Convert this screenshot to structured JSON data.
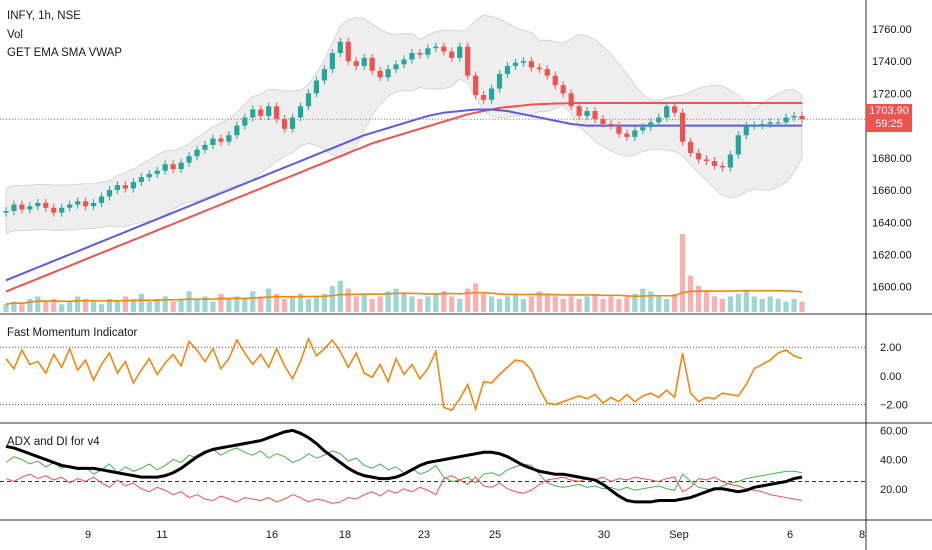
{
  "header": {
    "symbol_line": "INFY, 1h, NSE",
    "vol_label": "Vol",
    "overlay_label": "GET EMA SMA VWAP"
  },
  "panes": {
    "momentum_title": "Fast Momentum Indicator",
    "adx_title": "ADX and DI for v4"
  },
  "last_price": {
    "price": "1703.90",
    "countdown": "59:25"
  },
  "colors": {
    "up": "#26a69a",
    "down": "#ef5350",
    "ema_red": "#ef5350",
    "sma_blue": "#5b5be6",
    "band_fill": "#eeeeee",
    "momentum": "#f0870f",
    "adx": "#000000",
    "di_plus": "#4caf50",
    "di_minus": "#ef5350",
    "volume_ma": "#f0870f"
  },
  "chart_data": [
    {
      "type": "candlestick",
      "title": "INFY, 1h, NSE",
      "y_ticks": [
        "1760.00",
        "1740.00",
        "1720.00",
        "1700.00",
        "1680.00",
        "1660.00",
        "1640.00",
        "1620.00",
        "1600.00"
      ],
      "ylim": [
        1593,
        1768
      ],
      "x_ticks": [
        "9",
        "11",
        "16",
        "18",
        "23",
        "25",
        "30",
        "Sep",
        "6",
        "8"
      ],
      "close": [
        1647,
        1651,
        1648,
        1650,
        1652,
        1649,
        1646,
        1649,
        1651,
        1653,
        1650,
        1652,
        1656,
        1660,
        1663,
        1661,
        1665,
        1668,
        1670,
        1672,
        1676,
        1673,
        1677,
        1681,
        1685,
        1688,
        1692,
        1690,
        1694,
        1700,
        1705,
        1710,
        1706,
        1712,
        1704,
        1698,
        1705,
        1712,
        1720,
        1728,
        1735,
        1745,
        1752,
        1740,
        1737,
        1742,
        1734,
        1730,
        1735,
        1738,
        1741,
        1745,
        1744,
        1748,
        1749,
        1746,
        1742,
        1749,
        1731,
        1719,
        1716,
        1723,
        1732,
        1737,
        1739,
        1740,
        1736,
        1735,
        1731,
        1725,
        1720,
        1712,
        1706,
        1709,
        1704,
        1701,
        1700,
        1695,
        1693,
        1697,
        1699,
        1702,
        1705,
        1712,
        1708,
        1690,
        1683,
        1679,
        1678,
        1675,
        1674,
        1682,
        1694,
        1700,
        1700,
        1701,
        1702,
        1702,
        1705,
        1706,
        1703.9
      ],
      "overlays": {
        "ema_red": [
          1597,
          1599,
          1601,
          1603,
          1605,
          1607,
          1609,
          1611,
          1613,
          1615,
          1617,
          1619,
          1621,
          1623,
          1625,
          1627,
          1629,
          1631,
          1633,
          1635,
          1637,
          1639,
          1641,
          1643,
          1645,
          1647,
          1649,
          1651,
          1653,
          1655,
          1657,
          1659,
          1661,
          1663,
          1665,
          1667,
          1669,
          1671,
          1673,
          1675,
          1677,
          1679,
          1681,
          1683,
          1685,
          1687,
          1689,
          1690.5,
          1692,
          1693.5,
          1695,
          1696.5,
          1698,
          1699.5,
          1701,
          1702.5,
          1704,
          1705.5,
          1707,
          1708,
          1709,
          1710,
          1711,
          1711.5,
          1712,
          1712.5,
          1713,
          1713.3,
          1713.5,
          1713.7,
          1713.8,
          1713.9,
          1714,
          1714,
          1714,
          1714,
          1714,
          1714,
          1714,
          1714,
          1714,
          1714,
          1714,
          1714,
          1714,
          1714,
          1714,
          1714,
          1714,
          1714,
          1714,
          1714,
          1714,
          1714,
          1714,
          1714,
          1714,
          1714,
          1714,
          1714,
          1714
        ],
        "sma_blue": [
          1604,
          1606,
          1608,
          1610,
          1612,
          1614,
          1616,
          1618,
          1620,
          1622,
          1624,
          1626,
          1628,
          1630,
          1632,
          1634,
          1636,
          1638,
          1640,
          1642,
          1644,
          1646,
          1648,
          1650,
          1652,
          1654,
          1656,
          1658,
          1660,
          1662,
          1664,
          1666,
          1668,
          1670,
          1672,
          1674,
          1676,
          1678,
          1680,
          1682,
          1684,
          1686,
          1688,
          1690,
          1692,
          1694,
          1695.5,
          1697,
          1698.5,
          1700,
          1701.5,
          1703,
          1704.5,
          1706,
          1707,
          1708,
          1708.5,
          1709,
          1709.5,
          1710,
          1710,
          1710,
          1709.5,
          1709,
          1708,
          1707,
          1706,
          1705,
          1704,
          1703,
          1702,
          1701,
          1700.5,
          1700,
          1700,
          1700,
          1700,
          1700,
          1700,
          1700,
          1700,
          1700,
          1700,
          1700,
          1700,
          1700,
          1700,
          1700,
          1700,
          1700,
          1700,
          1700,
          1700,
          1700,
          1700,
          1700,
          1700,
          1700,
          1700,
          1700,
          1700
        ]
      }
    },
    {
      "type": "bar",
      "title": "Vol",
      "values": [
        3,
        4,
        3,
        5,
        6,
        4,
        5,
        3,
        4,
        6,
        5,
        4,
        3,
        5,
        4,
        6,
        5,
        7,
        4,
        5,
        6,
        4,
        5,
        8,
        5,
        6,
        4,
        7,
        5,
        6,
        5,
        8,
        6,
        9,
        7,
        5,
        6,
        7,
        5,
        6,
        7,
        10,
        12,
        9,
        6,
        7,
        5,
        6,
        8,
        9,
        7,
        6,
        5,
        6,
        7,
        8,
        6,
        5,
        9,
        11,
        7,
        6,
        5,
        6,
        7,
        5,
        6,
        8,
        7,
        6,
        5,
        6,
        5,
        6,
        7,
        5,
        6,
        5,
        6,
        7,
        9,
        8,
        6,
        5,
        7,
        30,
        14,
        10,
        8,
        6,
        5,
        6,
        7,
        8,
        6,
        5,
        6,
        5,
        4,
        5,
        4
      ]
    },
    {
      "type": "line",
      "title": "Fast Momentum Indicator",
      "y_ticks": [
        "2.00",
        "0.00",
        "−2.00"
      ],
      "ylim": [
        -2.8,
        3.2
      ],
      "values": [
        1.2,
        0.5,
        1.8,
        0.8,
        1.0,
        0.2,
        1.5,
        0.6,
        1.9,
        0.4,
        1.1,
        -0.3,
        0.8,
        1.6,
        0.2,
        1.0,
        -0.5,
        0.4,
        1.2,
        0.1,
        0.9,
        1.5,
        0.7,
        2.4,
        1.8,
        1.0,
        1.9,
        0.5,
        1.2,
        2.5,
        1.6,
        0.8,
        1.5,
        0.6,
        1.9,
        0.7,
        -0.2,
        1.0,
        2.6,
        1.4,
        1.9,
        2.5,
        1.7,
        0.6,
        1.6,
        0.2,
        -0.1,
        0.8,
        -0.4,
        1.2,
        0.1,
        0.8,
        -0.2,
        0.5,
        1.7,
        -2.2,
        -2.4,
        -1.6,
        -0.6,
        -2.3,
        -0.4,
        -0.5,
        0.1,
        0.6,
        1.1,
        1.0,
        0.4,
        -0.9,
        -1.9,
        -2.0,
        -1.8,
        -1.6,
        -1.4,
        -1.6,
        -1.3,
        -1.9,
        -1.5,
        -1.8,
        -1.3,
        -1.8,
        -1.4,
        -1.2,
        -1.5,
        -1.0,
        -1.5,
        1.6,
        -1.2,
        -1.8,
        -1.5,
        -1.6,
        -1.2,
        -1.3,
        -1.4,
        -0.6,
        0.5,
        0.8,
        1.1,
        1.6,
        1.8,
        1.4,
        1.2
      ],
      "reference_lines": [
        2.0,
        -2.0
      ]
    },
    {
      "type": "line",
      "title": "ADX and DI for v4",
      "y_ticks": [
        "60.00",
        "40.00",
        "20.00"
      ],
      "ylim": [
        0,
        63
      ],
      "threshold": 25,
      "series": [
        {
          "values": [
            49,
            48,
            46,
            44,
            42,
            40,
            38,
            36,
            35,
            34,
            34,
            34,
            33,
            32,
            31,
            30,
            29,
            28,
            28,
            28,
            29,
            31,
            34,
            38,
            42,
            45,
            47,
            48,
            49,
            50,
            51,
            52,
            53,
            55,
            57,
            59,
            60,
            58,
            55,
            51,
            46,
            42,
            38,
            34,
            31,
            29,
            28,
            27,
            27,
            28,
            30,
            33,
            36,
            38,
            39,
            40,
            41,
            42,
            43,
            44,
            45,
            45,
            44,
            42,
            39,
            36,
            34,
            32,
            31,
            30,
            30,
            29,
            28,
            27,
            26,
            23,
            19,
            15,
            12,
            11,
            11,
            11,
            12,
            12,
            12,
            13,
            14,
            16,
            18,
            20,
            20,
            19,
            18,
            19,
            21,
            22,
            23,
            24,
            25,
            27,
            28
          ]
        },
        {
          "values": [
            38,
            42,
            40,
            37,
            39,
            35,
            38,
            34,
            36,
            33,
            35,
            30,
            33,
            37,
            31,
            35,
            32,
            34,
            37,
            33,
            36,
            40,
            38,
            43,
            41,
            44,
            47,
            43,
            46,
            48,
            45,
            43,
            46,
            41,
            44,
            42,
            38,
            40,
            44,
            41,
            43,
            46,
            44,
            39,
            41,
            36,
            34,
            37,
            33,
            35,
            31,
            34,
            30,
            32,
            36,
            28,
            25,
            26,
            28,
            24,
            30,
            31,
            29,
            33,
            35,
            37,
            36,
            30,
            24,
            22,
            21,
            22,
            23,
            21,
            22,
            20,
            21,
            19,
            21,
            19,
            20,
            21,
            22,
            20,
            19,
            30,
            25,
            21,
            20,
            19,
            22,
            24,
            25,
            27,
            28,
            29,
            30,
            31,
            32,
            32,
            31
          ]
        },
        {
          "values": [
            27,
            25,
            28,
            30,
            27,
            29,
            26,
            28,
            24,
            27,
            25,
            28,
            24,
            21,
            26,
            22,
            24,
            20,
            18,
            21,
            19,
            16,
            18,
            14,
            16,
            13,
            12,
            15,
            13,
            11,
            14,
            13,
            12,
            14,
            11,
            13,
            16,
            14,
            11,
            13,
            12,
            10,
            11,
            14,
            13,
            16,
            18,
            15,
            19,
            17,
            20,
            18,
            21,
            19,
            16,
            27,
            29,
            26,
            23,
            28,
            22,
            21,
            24,
            20,
            18,
            17,
            19,
            23,
            26,
            27,
            28,
            26,
            25,
            27,
            26,
            28,
            25,
            27,
            26,
            28,
            27,
            26,
            25,
            27,
            28,
            18,
            21,
            27,
            26,
            28,
            25,
            23,
            22,
            20,
            19,
            18,
            16,
            15,
            14,
            13,
            12
          ]
        }
      ]
    }
  ]
}
